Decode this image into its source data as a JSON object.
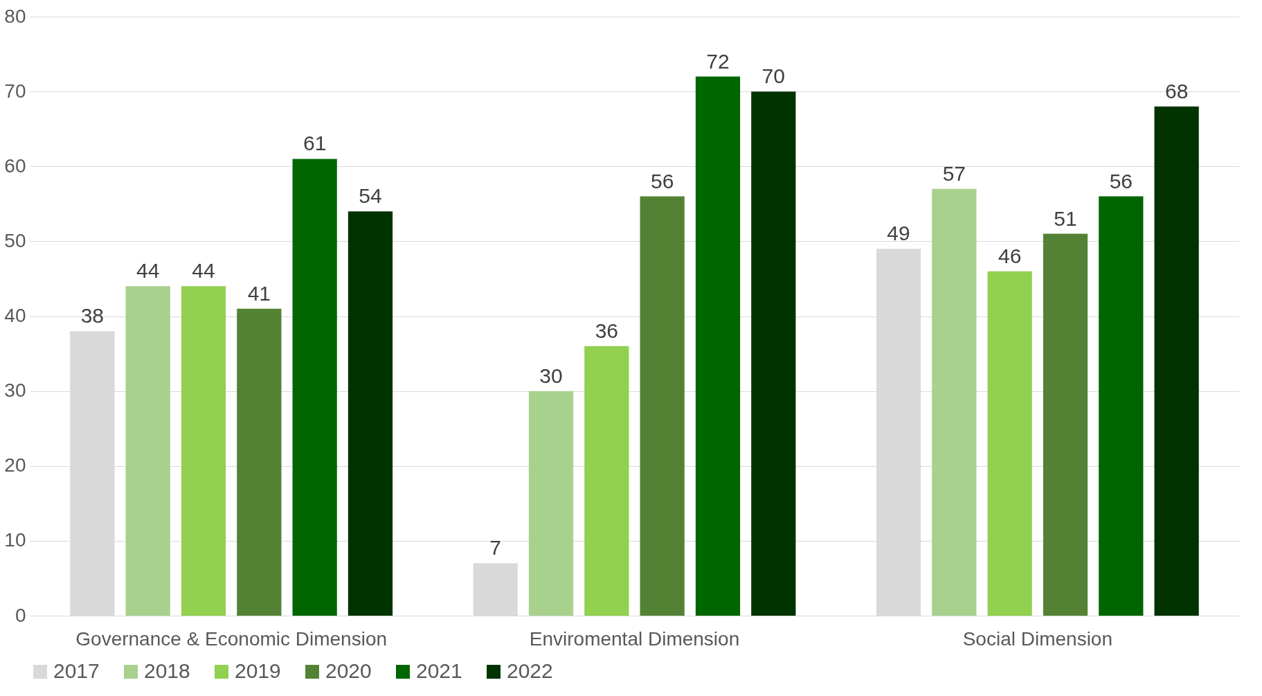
{
  "chart_data": {
    "type": "bar",
    "categories": [
      "Governance & Economic Dimension",
      "Enviromental Dimension",
      "Social Dimension"
    ],
    "series": [
      {
        "name": "2017",
        "color": "#d9d9d9",
        "values": [
          38,
          7,
          49
        ]
      },
      {
        "name": "2018",
        "color": "#a9d18e",
        "values": [
          44,
          30,
          57
        ]
      },
      {
        "name": "2019",
        "color": "#92d050",
        "values": [
          44,
          36,
          46
        ]
      },
      {
        "name": "2020",
        "color": "#548235",
        "values": [
          41,
          56,
          51
        ]
      },
      {
        "name": "2021",
        "color": "#006600",
        "values": [
          61,
          72,
          56
        ]
      },
      {
        "name": "2022",
        "color": "#003300",
        "values": [
          54,
          70,
          68
        ]
      }
    ],
    "ylim": [
      0,
      80
    ],
    "yticks": [
      0,
      10,
      20,
      30,
      40,
      50,
      60,
      70,
      80
    ],
    "grid": "y",
    "legend": "bottom",
    "data_labels": true
  }
}
